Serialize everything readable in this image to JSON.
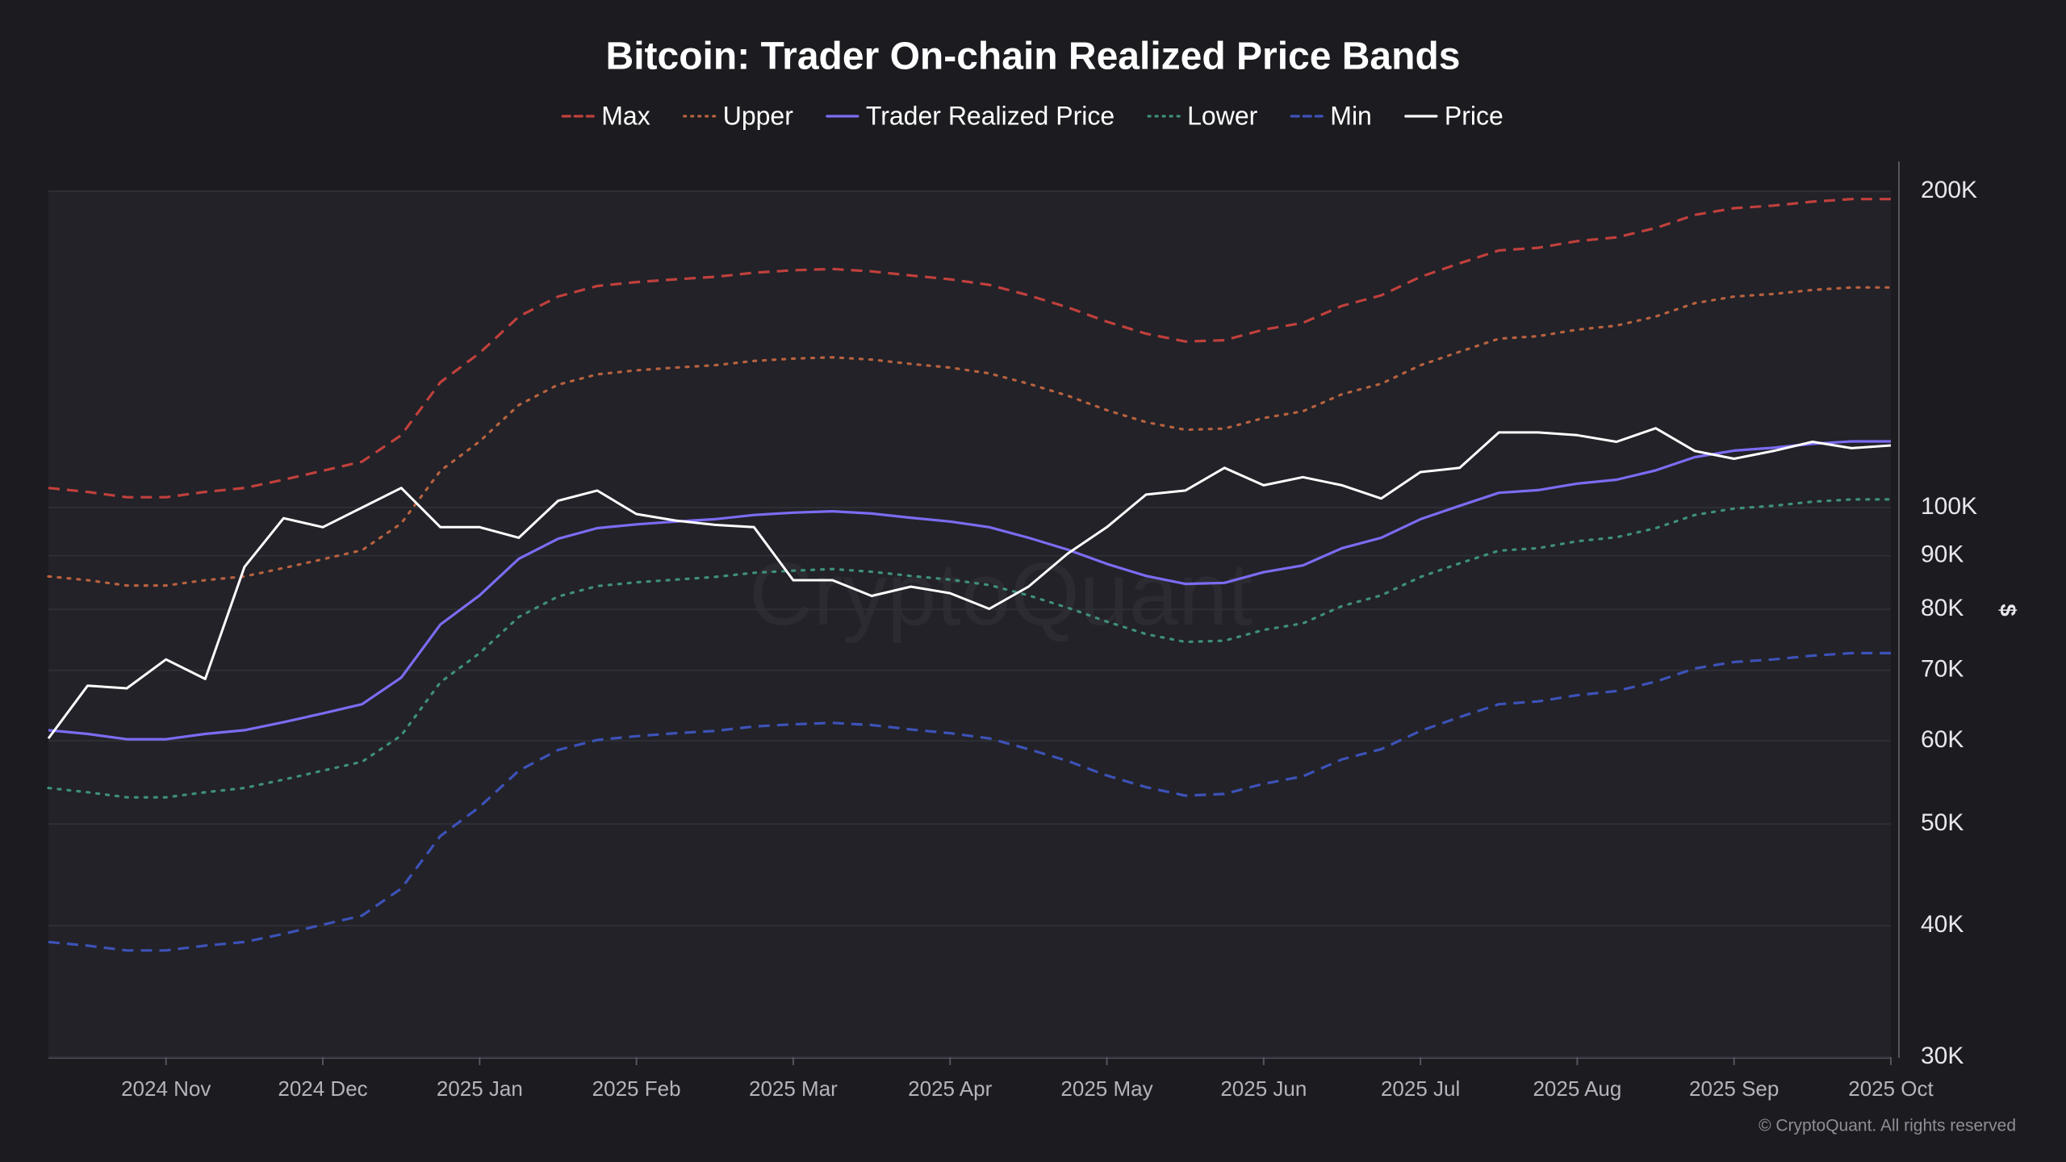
{
  "chart_data": {
    "type": "line",
    "title": "Bitcoin: Trader On-chain Realized Price Bands",
    "y_axis_label": "$",
    "watermark": "CryptoQuant",
    "copyright": "© CryptoQuant. All rights reserved",
    "log_scale": true,
    "grid": true,
    "legend": "top",
    "categories": [
      null,
      null,
      null,
      "2024 Nov",
      null,
      null,
      null,
      "2024 Dec",
      null,
      null,
      null,
      "2025 Jan",
      null,
      null,
      null,
      "2025 Feb",
      null,
      null,
      null,
      "2025 Mar",
      null,
      null,
      null,
      "2025 Apr",
      null,
      null,
      null,
      "2025 May",
      null,
      null,
      null,
      "2025 Jun",
      null,
      null,
      null,
      "2025 Jul",
      null,
      null,
      null,
      "2025 Aug",
      null,
      null,
      null,
      "2025 Sep",
      null,
      null,
      null,
      "2025 Oct"
    ],
    "ylim": [
      30000,
      200000
    ],
    "yticks": [
      {
        "value": 30000,
        "label": "30K"
      },
      {
        "value": 40000,
        "label": "40K"
      },
      {
        "value": 50000,
        "label": "50K"
      },
      {
        "value": 60000,
        "label": "60K"
      },
      {
        "value": 70000,
        "label": "70K"
      },
      {
        "value": 80000,
        "label": "80K"
      },
      {
        "value": 90000,
        "label": "90K"
      },
      {
        "value": 100000,
        "label": "100K"
      },
      {
        "value": 200000,
        "label": "200K"
      }
    ],
    "series": [
      {
        "name": "Max",
        "color": "#c0403c",
        "dash": "dashed",
        "values": [
          104400,
          103500,
          102300,
          102300,
          103500,
          104400,
          106300,
          108400,
          110600,
          117200,
          131600,
          140300,
          152000,
          158800,
          162500,
          163900,
          164900,
          165800,
          167300,
          168200,
          168700,
          167800,
          166300,
          164900,
          162900,
          159200,
          155100,
          150300,
          146400,
          143900,
          144300,
          147700,
          149900,
          155600,
          159200,
          165800,
          170800,
          175700,
          176700,
          179300,
          180800,
          184500,
          189900,
          192700,
          193800,
          195500,
          196600,
          196600
        ]
      },
      {
        "name": "Upper",
        "color": "#b8613f",
        "dash": "dotted",
        "values": [
          86000,
          85300,
          84300,
          84300,
          85300,
          86000,
          87600,
          89300,
          91100,
          96600,
          108400,
          115600,
          125200,
          130900,
          133900,
          135100,
          135900,
          136600,
          137900,
          138600,
          139000,
          138300,
          137000,
          135900,
          134200,
          131200,
          127800,
          123800,
          120600,
          118600,
          118900,
          121700,
          123500,
          128200,
          131200,
          136600,
          140700,
          144800,
          145600,
          147700,
          149000,
          152000,
          156500,
          158800,
          159700,
          161100,
          162000,
          162000
        ]
      },
      {
        "name": "Trader Realized Price",
        "color": "#7b6cf2",
        "dash": "solid",
        "values": [
          61400,
          60900,
          60200,
          60200,
          60900,
          61400,
          62500,
          63700,
          65000,
          68900,
          77400,
          82500,
          89400,
          93400,
          95600,
          96400,
          97000,
          97500,
          98400,
          98900,
          99200,
          98700,
          97800,
          97000,
          95800,
          93600,
          91200,
          88400,
          86100,
          84600,
          84800,
          86800,
          88100,
          91500,
          93600,
          97500,
          100400,
          103300,
          103900,
          105400,
          106300,
          108500,
          111700,
          113300,
          114000,
          115000,
          115600,
          115600
        ]
      },
      {
        "name": "Lower",
        "color": "#3f8f7e",
        "dash": "dotted",
        "values": [
          54100,
          53600,
          53000,
          53000,
          53600,
          54100,
          55100,
          56200,
          57300,
          60700,
          68200,
          72700,
          78700,
          82300,
          84200,
          84900,
          85400,
          85900,
          86700,
          87100,
          87400,
          86900,
          86100,
          85400,
          84400,
          82500,
          80300,
          77900,
          75800,
          74500,
          74700,
          76500,
          77600,
          80600,
          82500,
          85900,
          88500,
          91000,
          91500,
          92900,
          93700,
          95600,
          98400,
          99800,
          100400,
          101300,
          101800,
          101800
        ]
      },
      {
        "name": "Min",
        "color": "#3d52b8",
        "dash": "dashed",
        "values": [
          38600,
          38300,
          37900,
          37900,
          38300,
          38600,
          39300,
          40100,
          40900,
          43400,
          48700,
          51900,
          56200,
          58800,
          60100,
          60600,
          61000,
          61300,
          61900,
          62200,
          62400,
          62100,
          61500,
          61000,
          60300,
          58900,
          57400,
          55600,
          54200,
          53200,
          53400,
          54600,
          55500,
          57600,
          58900,
          61300,
          63200,
          65000,
          65400,
          66300,
          66900,
          68300,
          70300,
          71300,
          71700,
          72300,
          72700,
          72700
        ]
      },
      {
        "name": "Price",
        "color": "#ffffff",
        "dash": "solid",
        "values": [
          60300,
          67700,
          67300,
          71700,
          68700,
          87800,
          97700,
          95800,
          100000,
          104400,
          95800,
          95800,
          93600,
          101500,
          103800,
          98600,
          97200,
          96300,
          95800,
          85300,
          85300,
          82400,
          84100,
          82900,
          80100,
          84100,
          90400,
          95800,
          102900,
          103800,
          109100,
          105000,
          106900,
          105000,
          102000,
          108100,
          109100,
          117900,
          117900,
          117200,
          115500,
          119000,
          113200,
          111300,
          113200,
          115500,
          113900,
          114600
        ]
      }
    ]
  }
}
